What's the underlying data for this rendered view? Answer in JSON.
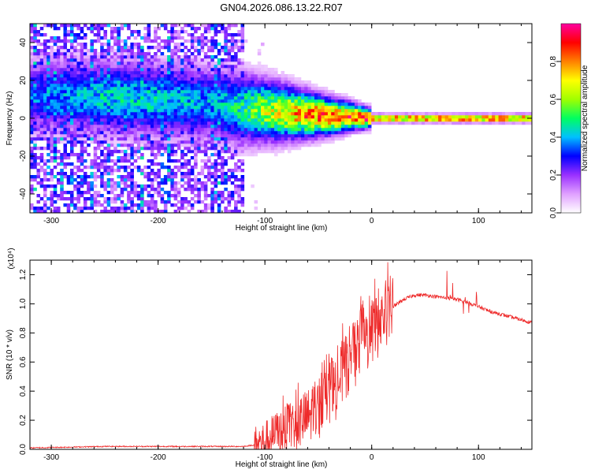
{
  "chart_data": [
    {
      "type": "heatmap",
      "title": "GN04.2026.086.13.22.R07",
      "xlabel": "Height of straight line (km)",
      "ylabel": "Frequency (Hz)",
      "xlim": [
        -320,
        150
      ],
      "ylim": [
        -50,
        50
      ],
      "xticks": [
        -300,
        -200,
        -100,
        0,
        100
      ],
      "xtick_labels": [
        "-300",
        "-200",
        "-100",
        "0",
        "100"
      ],
      "yticks": [
        -40,
        -20,
        0,
        20,
        40
      ],
      "ytick_labels": [
        "-40",
        "-20",
        "0",
        "20",
        "40"
      ],
      "colorbar": {
        "label": "Normalized spectral amplitude",
        "range": [
          0,
          1
        ],
        "ticks": [
          0,
          0.2,
          0.4,
          0.6,
          0.8
        ],
        "tick_labels": [
          "0.0",
          "0.2",
          "0.4",
          "0.6",
          "0.8"
        ],
        "colors": [
          "#ffffff",
          "#e0a0ff",
          "#9a30ff",
          "#0000ff",
          "#00c0ff",
          "#00ff60",
          "#a0ff00",
          "#ffff00",
          "#ff8000",
          "#ff0000",
          "#ff00a0"
        ]
      },
      "trace": {
        "x": [
          -320,
          -250,
          -200,
          -150,
          -120,
          -100,
          -80,
          -60,
          -40,
          -20,
          0,
          50,
          100,
          150
        ],
        "center_freq_hz": [
          12,
          11,
          10,
          8,
          5,
          4,
          3,
          2,
          1,
          1,
          0,
          0,
          0,
          0
        ],
        "peak_amplitude": [
          0.35,
          0.45,
          0.45,
          0.4,
          0.5,
          0.65,
          0.75,
          0.85,
          0.9,
          0.9,
          0.95,
          0.95,
          0.95,
          0.95
        ]
      },
      "noise_region_x": [
        -320,
        -120
      ]
    },
    {
      "type": "line",
      "xlabel": "Height of straight line (km)",
      "ylabel": "SNR (10 * v/v)",
      "scale_label": "(x10⁴)",
      "xlim": [
        -320,
        150
      ],
      "ylim": [
        0,
        1.3
      ],
      "xticks": [
        -300,
        -200,
        -100,
        0,
        100
      ],
      "xtick_labels": [
        "-300",
        "-200",
        "-100",
        "0",
        "100"
      ],
      "yticks": [
        0,
        0.2,
        0.4,
        0.6,
        0.8,
        1.0,
        1.2
      ],
      "ytick_labels": [
        "0.0",
        "0.2",
        "0.4",
        "0.6",
        "0.8",
        "1.0",
        "1.2"
      ],
      "series": [
        {
          "name": "SNR",
          "color": "#ee2a2a",
          "x": [
            -320,
            -250,
            -200,
            -150,
            -120,
            -110,
            -100,
            -90,
            -80,
            -70,
            -60,
            -50,
            -40,
            -30,
            -20,
            -10,
            0,
            10,
            20,
            30,
            40,
            50,
            60,
            70,
            80,
            90,
            100,
            110,
            120,
            130,
            140,
            150
          ],
          "values": [
            0.01,
            0.02,
            0.02,
            0.02,
            0.02,
            0.03,
            0.05,
            0.1,
            0.14,
            0.18,
            0.22,
            0.28,
            0.36,
            0.48,
            0.62,
            0.72,
            0.8,
            0.9,
            0.98,
            1.03,
            1.06,
            1.06,
            1.05,
            1.04,
            1.03,
            1.01,
            0.98,
            0.95,
            0.93,
            0.91,
            0.89,
            0.87
          ]
        }
      ]
    }
  ]
}
